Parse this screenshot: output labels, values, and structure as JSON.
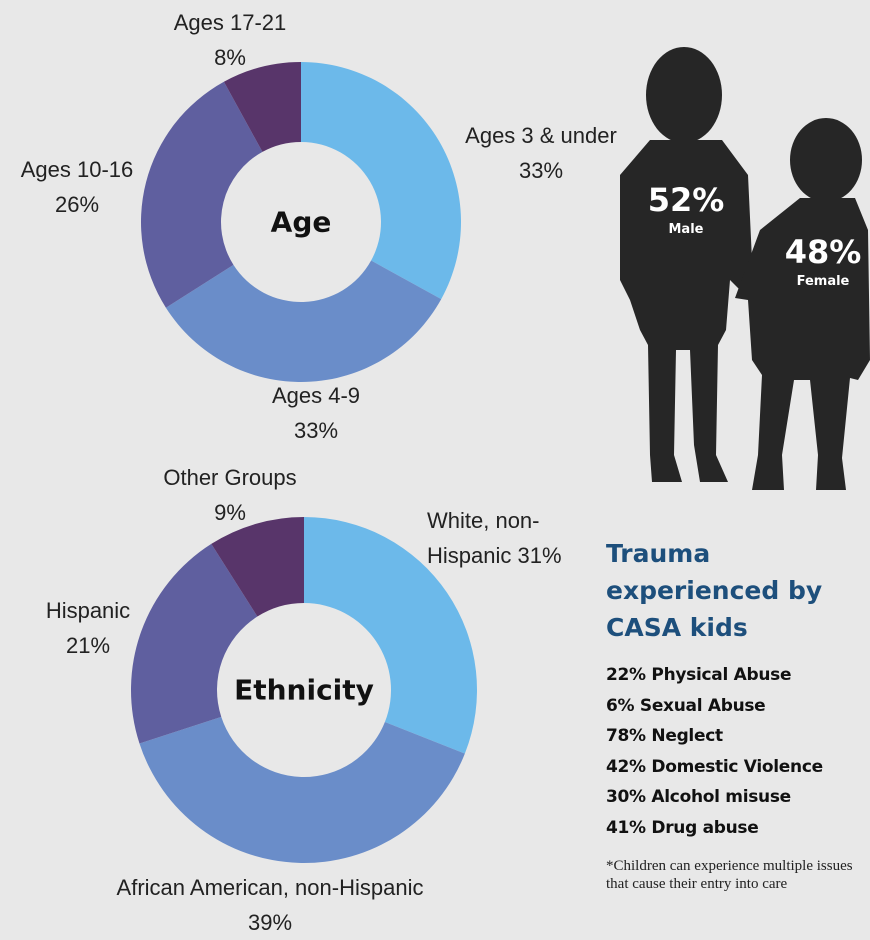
{
  "chart_data": [
    {
      "type": "pie",
      "title": "Age",
      "categories": [
        "Ages 3 & under",
        "Ages 4-9",
        "Ages 10-16",
        "Ages 17-21"
      ],
      "values": [
        33,
        33,
        26,
        8
      ],
      "value_labels": [
        "33%",
        "33%",
        "26%",
        "8%"
      ],
      "colors": [
        "#6cb9ea",
        "#6a8dc9",
        "#5f5f9f",
        "#58356a"
      ]
    },
    {
      "type": "pie",
      "title": "Ethnicity",
      "categories": [
        "White, non-Hispanic",
        "African American, non-Hispanic",
        "Hispanic",
        "Other Groups"
      ],
      "values": [
        31,
        39,
        21,
        9
      ],
      "value_labels": [
        "31%",
        "39%",
        "21%",
        "9%"
      ],
      "colors": [
        "#6cb9ea",
        "#6a8dc9",
        "#5f5f9f",
        "#58356a"
      ]
    }
  ],
  "gender": [
    {
      "value_label": "52%",
      "name": "Male"
    },
    {
      "value_label": "48%",
      "name": "Female"
    }
  ],
  "trauma": {
    "title": "Trauma experienced by CASA kids",
    "items": [
      "22% Physical Abuse",
      "6% Sexual Abuse",
      "78% Neglect",
      "42% Domestic Violence",
      "30% Alcohol misuse",
      "41% Drug abuse"
    ],
    "footnote": "*Children can experience multiple issues that cause their entry into care"
  }
}
